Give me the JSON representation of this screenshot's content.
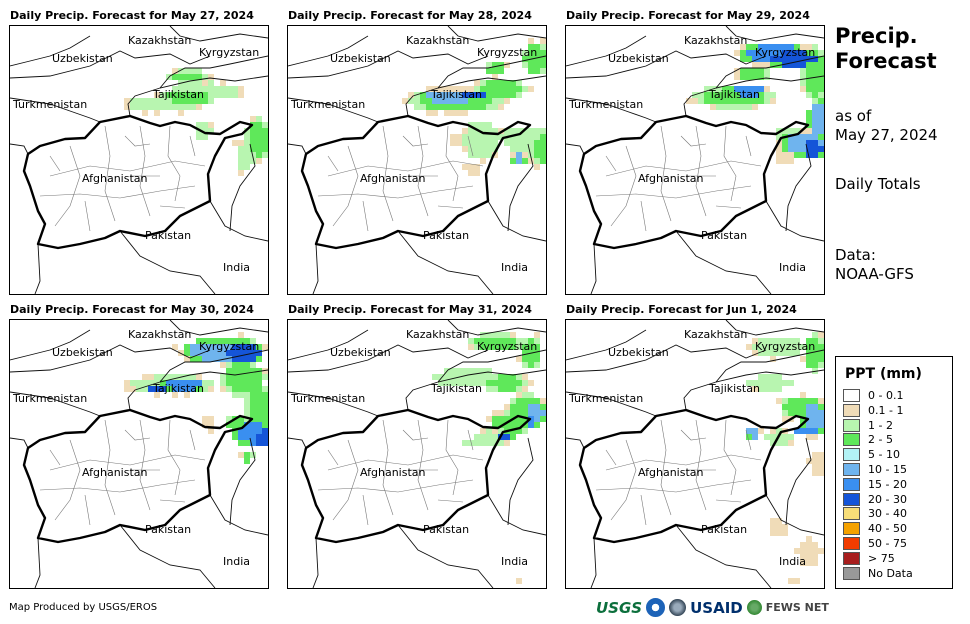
{
  "panels": [
    {
      "title": "Daily Precip. Forecast for May 27, 2024",
      "day": 0
    },
    {
      "title": "Daily Precip. Forecast for May 28, 2024",
      "day": 1
    },
    {
      "title": "Daily Precip. Forecast for May 29, 2024",
      "day": 2
    },
    {
      "title": "Daily Precip. Forecast for May 30, 2024",
      "day": 3
    },
    {
      "title": "Daily Precip. Forecast for May 31, 2024",
      "day": 4
    },
    {
      "title": "Daily Precip. Forecast for Jun 1, 2024",
      "day": 5
    }
  ],
  "map_labels": {
    "kazakhstan": "Kazakhstan",
    "kyrgyzstan": "Kyrgyzstan",
    "uzbekistan": "Uzbekistan",
    "tajikistan": "Tajikistan",
    "turkmenistan": "Turkmenistan",
    "afghanistan": "Afghanistan",
    "pakistan": "Pakistan",
    "india": "India"
  },
  "side": {
    "title_line1": "Precip.",
    "title_line2": "Forecast",
    "asof_line1": "as of",
    "asof_line2": "May 27, 2024",
    "daily": "Daily Totals",
    "data_line1": "Data:",
    "data_line2": "NOAA-GFS"
  },
  "legend": {
    "title": "PPT (mm)",
    "items": [
      {
        "label": "0 - 0.1",
        "color": "#ffffff"
      },
      {
        "label": "0.1 - 1",
        "color": "#f0dcb8"
      },
      {
        "label": "1 - 2",
        "color": "#b8f5b0"
      },
      {
        "label": "2 - 5",
        "color": "#5fe85a"
      },
      {
        "label": "5 - 10",
        "color": "#b2f2f5"
      },
      {
        "label": "10 - 15",
        "color": "#6fb4ee"
      },
      {
        "label": "15 - 20",
        "color": "#3a8ff0"
      },
      {
        "label": "20 - 30",
        "color": "#1555d8"
      },
      {
        "label": "30 - 40",
        "color": "#f8de78"
      },
      {
        "label": "40 - 50",
        "color": "#f5a200"
      },
      {
        "label": "50 - 75",
        "color": "#f23c00"
      },
      {
        "label": "> 75",
        "color": "#a81e1e"
      },
      {
        "label": "No Data",
        "color": "#999999"
      }
    ]
  },
  "footer": "Map Produced by USGS/EROS",
  "logos": {
    "usgs": "USGS",
    "usaid": "USAID",
    "fews": "FEWS NET"
  }
}
